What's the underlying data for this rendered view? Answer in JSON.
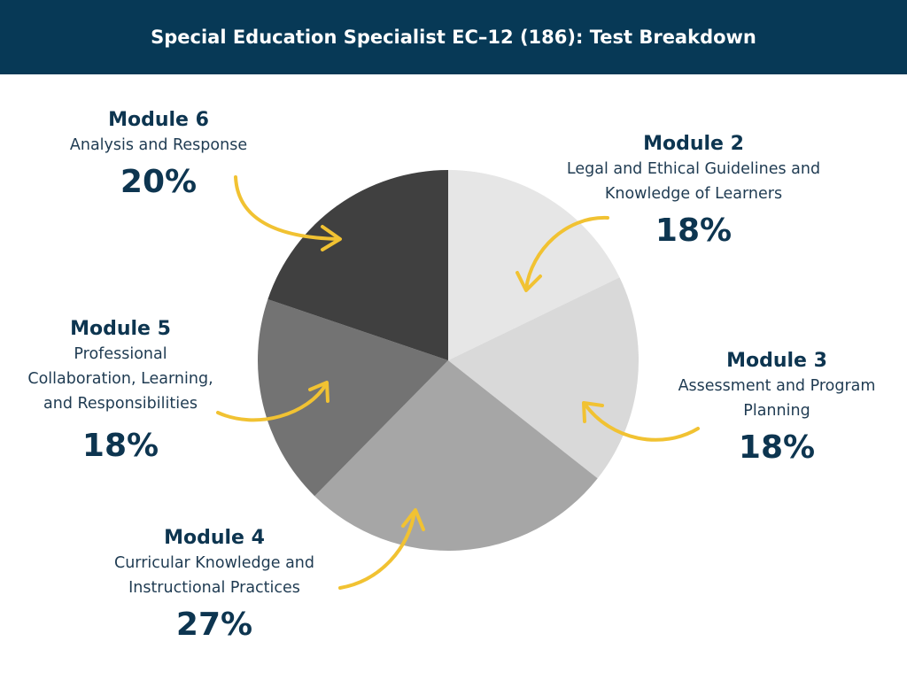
{
  "header": {
    "title": "Special Education Specialist EC–12 (186): Test Breakdown"
  },
  "colors": {
    "header_bg": "#073956",
    "text": "#0d3550",
    "arrow": "#f1c232"
  },
  "chart_data": {
    "type": "pie",
    "title": "Special Education Specialist EC–12 (186): Test Breakdown",
    "start_angle": "12 o'clock, clockwise",
    "slices": [
      {
        "label": "Module 2",
        "description": "Legal and Ethical Guidelines and Knowledge of Learners",
        "value": 18,
        "display": "18%",
        "color": "#e6e6e6"
      },
      {
        "label": "Module 3",
        "description": "Assessment and Program Planning",
        "value": 18,
        "display": "18%",
        "color": "#d9d9d9"
      },
      {
        "label": "Module 4",
        "description": "Curricular Knowledge and Instructional Practices",
        "value": 27,
        "display": "27%",
        "color": "#a6a6a6"
      },
      {
        "label": "Module 5",
        "description": "Professional Collaboration, Learning, and Responsibilities",
        "value": 18,
        "display": "18%",
        "color": "#737373"
      },
      {
        "label": "Module 6",
        "description": "Analysis and Response",
        "value": 20,
        "display": "20%",
        "color": "#404040"
      }
    ]
  },
  "labels": {
    "m2": {
      "title": "Module 2",
      "desc": [
        "Legal and Ethical Guidelines and",
        "Knowledge of Learners"
      ],
      "pct": "18%"
    },
    "m3": {
      "title": "Module 3",
      "desc": [
        "Assessment and Program",
        "Planning"
      ],
      "pct": "18%"
    },
    "m4": {
      "title": "Module 4",
      "desc": [
        "Curricular Knowledge and",
        "Instructional Practices"
      ],
      "pct": "27%"
    },
    "m5": {
      "title": "Module 5",
      "desc": [
        "Professional",
        "Collaboration, Learning,",
        "and Responsibilities"
      ],
      "pct": "18%"
    },
    "m6": {
      "title": "Module 6",
      "desc": [
        "Analysis and Response"
      ],
      "pct": "20%"
    }
  }
}
